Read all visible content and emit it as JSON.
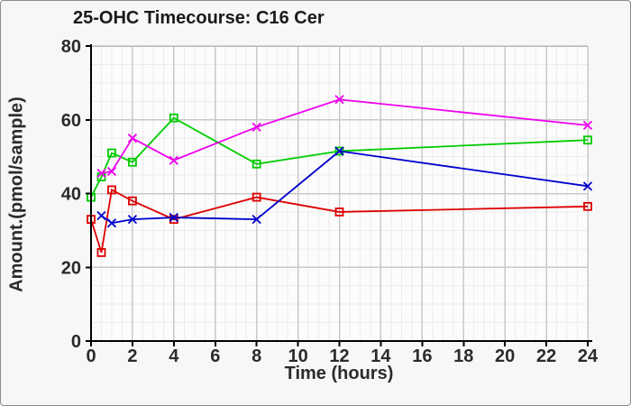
{
  "window": {
    "background": "#f7f7f7",
    "border_color": "#8a8a8a",
    "plot_background": "#fcfcfc",
    "grid_major_color": "#c9c9c9",
    "grid_minor_color": "#ececec",
    "axis_color": "#000000",
    "text_color": "#2b2b2b"
  },
  "chart_data": {
    "type": "line",
    "title": "25-OHC Timecourse: C16 Cer",
    "xlabel": "Time (hours)",
    "ylabel": "Amount.(pmol/sample)",
    "xlim": [
      0,
      24
    ],
    "ylim": [
      0,
      80
    ],
    "x_ticks": [
      0,
      2,
      4,
      6,
      8,
      10,
      12,
      14,
      16,
      18,
      20,
      22,
      24
    ],
    "y_ticks": [
      0,
      20,
      40,
      60,
      80
    ],
    "x_minor_step": 0.5,
    "y_minor_step": 5,
    "grid": true,
    "legend_position": "none",
    "series": [
      {
        "name": "red-squares",
        "color": "#dd0000",
        "marker": "square",
        "x": [
          0,
          0.5,
          1,
          2,
          4,
          8,
          12,
          24
        ],
        "y": [
          33,
          24,
          41,
          38,
          33,
          39,
          35,
          36.5
        ]
      },
      {
        "name": "green-squares",
        "color": "#00cc00",
        "marker": "square",
        "x": [
          0,
          0.5,
          1,
          2,
          4,
          8,
          12,
          24
        ],
        "y": [
          39,
          44.5,
          51,
          48.5,
          60.5,
          48,
          51.5,
          54.5
        ]
      },
      {
        "name": "blue-crosses",
        "color": "#0000cc",
        "marker": "x",
        "x": [
          0.5,
          1,
          2,
          4,
          8,
          12,
          24
        ],
        "y": [
          34,
          32,
          33,
          33.5,
          33,
          51.5,
          42
        ]
      },
      {
        "name": "magenta-crosses",
        "color": "#ee00ee",
        "marker": "x",
        "x": [
          0.5,
          1,
          2,
          4,
          8,
          12,
          24
        ],
        "y": [
          45.5,
          46,
          55,
          49,
          58,
          65.5,
          58.5
        ]
      }
    ]
  }
}
